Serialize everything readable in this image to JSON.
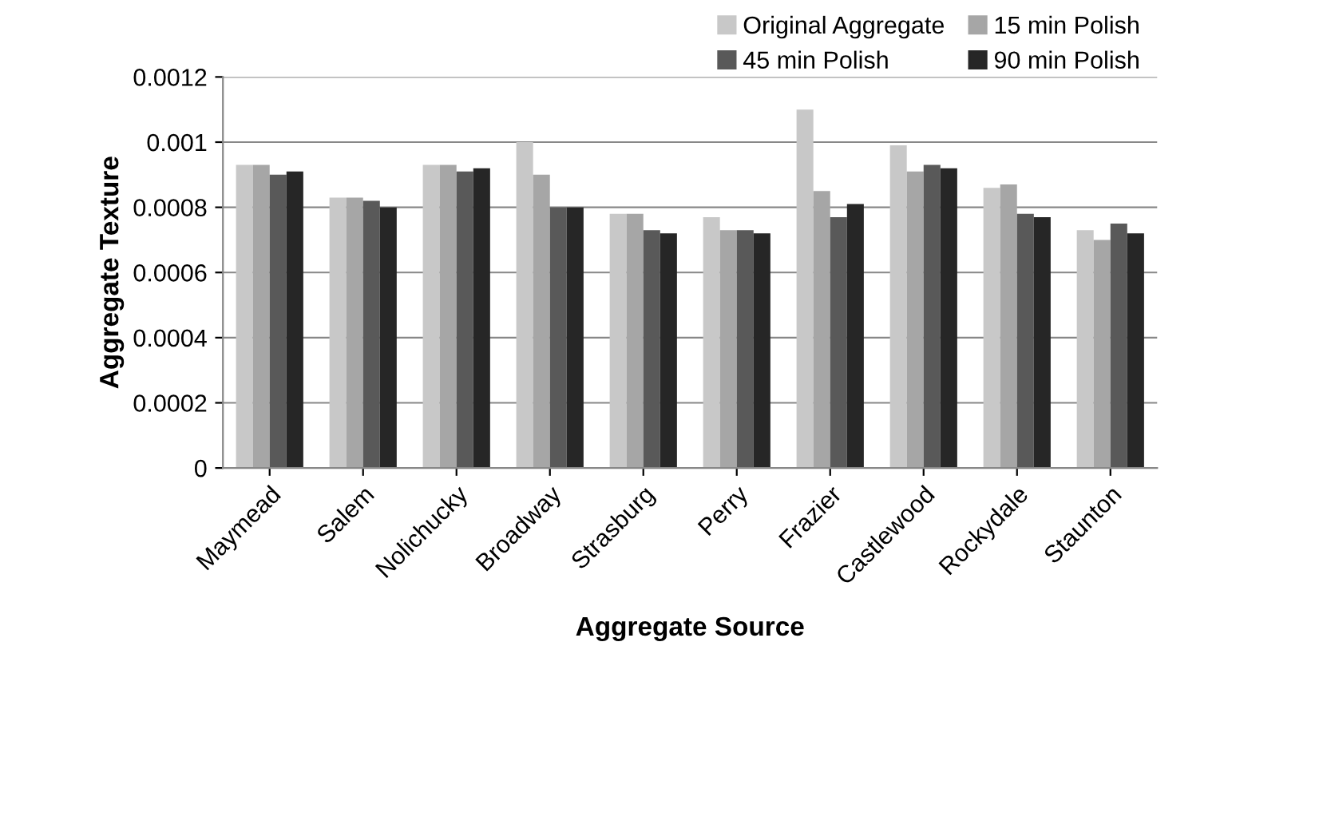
{
  "chart_data": {
    "type": "bar",
    "xlabel": "Aggregate Source",
    "ylabel": "Aggregate Texture",
    "categories": [
      "Maymead",
      "Salem",
      "Nolichucky",
      "Broadway",
      "Strasburg",
      "Perry",
      "Frazier",
      "Castlewood",
      "Rockydale",
      "Staunton"
    ],
    "series": [
      {
        "name": "Original Aggregate",
        "color": "#c8c8c8",
        "values": [
          0.00093,
          0.00083,
          0.00093,
          0.001,
          0.00078,
          0.00077,
          0.0011,
          0.00099,
          0.00086,
          0.00073
        ]
      },
      {
        "name": "15 min Polish",
        "color": "#a6a6a6",
        "values": [
          0.00093,
          0.00083,
          0.00093,
          0.0009,
          0.00078,
          0.00073,
          0.00085,
          0.00091,
          0.00087,
          0.0007
        ]
      },
      {
        "name": "45 min Polish",
        "color": "#595959",
        "values": [
          0.0009,
          0.00082,
          0.00091,
          0.0008,
          0.00073,
          0.00073,
          0.00077,
          0.00093,
          0.00078,
          0.00075
        ]
      },
      {
        "name": "90 min Polish",
        "color": "#262626",
        "values": [
          0.00091,
          0.0008,
          0.00092,
          0.0008,
          0.00072,
          0.00072,
          0.00081,
          0.00092,
          0.00077,
          0.00072
        ]
      }
    ],
    "ylim": [
      0,
      0.0012
    ],
    "yticks": [
      0,
      0.0002,
      0.0004,
      0.0006,
      0.0008,
      0.001,
      0.0012
    ],
    "grid": "y",
    "legend": "top right"
  }
}
